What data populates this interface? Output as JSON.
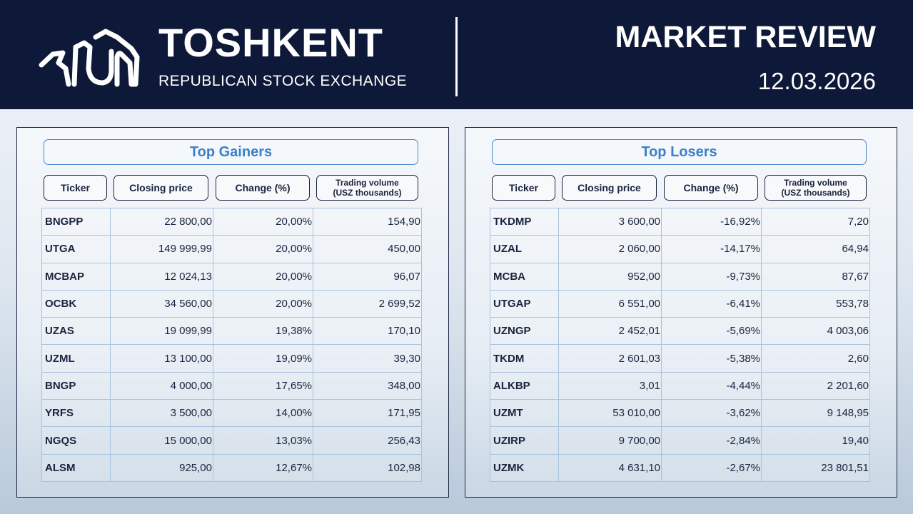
{
  "header": {
    "brand_title": "TOSHKENT",
    "brand_subtitle": "REPUBLICAN STOCK EXCHANGE",
    "review_title": "MARKET REVIEW",
    "date": "12.03.2026",
    "logo_icon": "rse-logo-icon"
  },
  "colors": {
    "header_bg": "#0e1838",
    "accent_blue": "#3f7fc6",
    "gain_green": "#1f9a43",
    "loss_red": "#d42424"
  },
  "columns": {
    "ticker": "Ticker",
    "closing_price": "Closing price",
    "change": "Change (%)",
    "volume_line1": "Trading volume",
    "volume_line2": "(USZ thousands)"
  },
  "gainers": {
    "title": "Top Gainers",
    "rows": [
      {
        "ticker": "BNGPP",
        "price": "22 800,00",
        "change": "20,00%",
        "volume": "154,90"
      },
      {
        "ticker": "UTGA",
        "price": "149 999,99",
        "change": "20,00%",
        "volume": "450,00"
      },
      {
        "ticker": "MCBAP",
        "price": "12 024,13",
        "change": "20,00%",
        "volume": "96,07"
      },
      {
        "ticker": "OCBK",
        "price": "34 560,00",
        "change": "20,00%",
        "volume": "2 699,52"
      },
      {
        "ticker": "UZAS",
        "price": "19 099,99",
        "change": "19,38%",
        "volume": "170,10"
      },
      {
        "ticker": "UZML",
        "price": "13 100,00",
        "change": "19,09%",
        "volume": "39,30"
      },
      {
        "ticker": "BNGP",
        "price": "4 000,00",
        "change": "17,65%",
        "volume": "348,00"
      },
      {
        "ticker": "YRFS",
        "price": "3 500,00",
        "change": "14,00%",
        "volume": "171,95"
      },
      {
        "ticker": "NGQS",
        "price": "15 000,00",
        "change": "13,03%",
        "volume": "256,43"
      },
      {
        "ticker": "ALSM",
        "price": "925,00",
        "change": "12,67%",
        "volume": "102,98"
      }
    ]
  },
  "losers": {
    "title": "Top Losers",
    "rows": [
      {
        "ticker": "TKDMP",
        "price": "3 600,00",
        "change": "-16,92%",
        "volume": "7,20"
      },
      {
        "ticker": "UZAL",
        "price": "2 060,00",
        "change": "-14,17%",
        "volume": "64,94"
      },
      {
        "ticker": "MCBA",
        "price": "952,00",
        "change": "-9,73%",
        "volume": "87,67"
      },
      {
        "ticker": "UTGAP",
        "price": "6 551,00",
        "change": "-6,41%",
        "volume": "553,78"
      },
      {
        "ticker": "UZNGP",
        "price": "2 452,01",
        "change": "-5,69%",
        "volume": "4 003,06"
      },
      {
        "ticker": "TKDM",
        "price": "2 601,03",
        "change": "-5,38%",
        "volume": "2,60"
      },
      {
        "ticker": "ALKBP",
        "price": "3,01",
        "change": "-4,44%",
        "volume": "2 201,60"
      },
      {
        "ticker": "UZMT",
        "price": "53 010,00",
        "change": "-3,62%",
        "volume": "9 148,95"
      },
      {
        "ticker": "UZIRP",
        "price": "9 700,00",
        "change": "-2,84%",
        "volume": "19,40"
      },
      {
        "ticker": "UZMK",
        "price": "4 631,10",
        "change": "-2,67%",
        "volume": "23 801,51"
      }
    ]
  }
}
